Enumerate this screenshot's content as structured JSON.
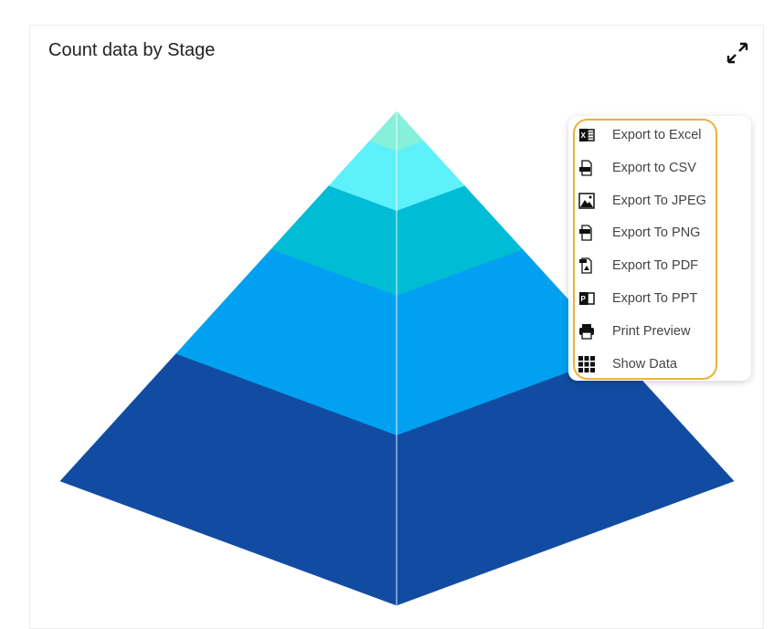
{
  "chart_data": {
    "type": "pyramid",
    "title": "Count data by Stage",
    "values": [
      8,
      12,
      17,
      28,
      34
    ],
    "colors": [
      "#86f0da",
      "#5ef0fb",
      "#00bcd4",
      "#02a0f0",
      "#124ca2"
    ]
  },
  "menu": {
    "items": [
      {
        "label": "Export to Excel",
        "icon": "excel-icon"
      },
      {
        "label": "Export to CSV",
        "icon": "csv-icon"
      },
      {
        "label": "Export To JPEG",
        "icon": "image-icon"
      },
      {
        "label": "Export To PNG",
        "icon": "png-icon"
      },
      {
        "label": "Export To PDF",
        "icon": "pdf-icon"
      },
      {
        "label": "Export To PPT",
        "icon": "ppt-icon"
      },
      {
        "label": "Print Preview",
        "icon": "printer-icon"
      },
      {
        "label": "Show Data",
        "icon": "grid-icon"
      }
    ]
  }
}
